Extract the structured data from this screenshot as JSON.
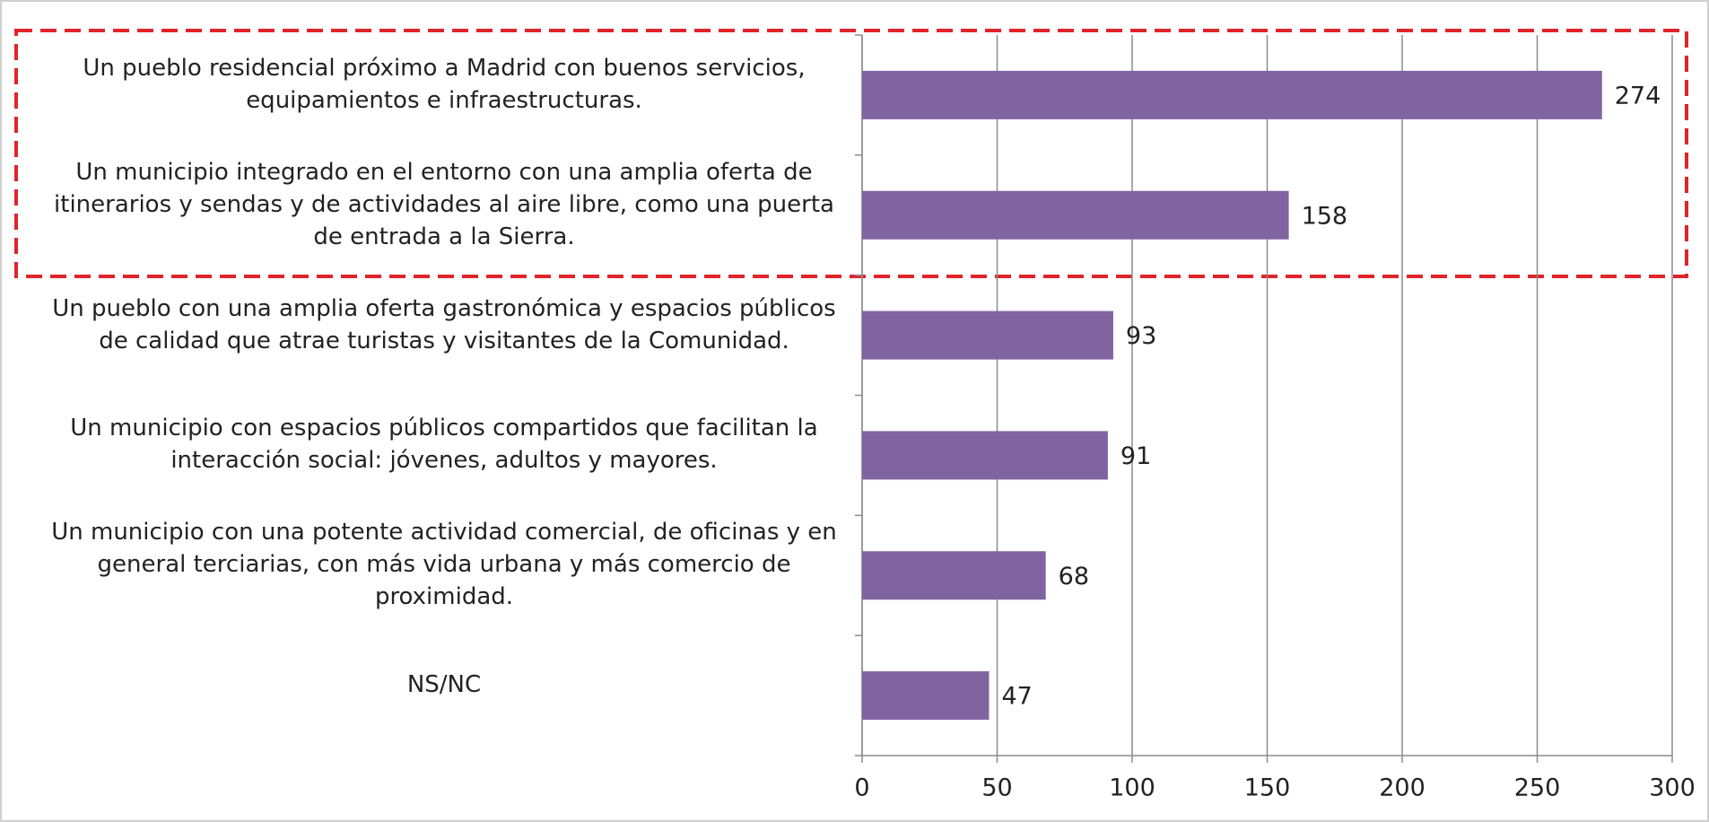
{
  "chart_data": {
    "type": "bar",
    "orientation": "horizontal",
    "categories": [
      "Un pueblo residencial próximo a Madrid con buenos servicios, equipamientos e infraestructuras.",
      "Un municipio integrado en el entorno con una amplia oferta de itinerarios y sendas y de actividades al aire libre, como una puerta de entrada a la Sierra.",
      "Un pueblo con una amplia oferta gastronómica y espacios públicos de calidad que atrae turistas y visitantes de la Comunidad.",
      "Un municipio con espacios públicos compartidos que facilitan la interacción social: jóvenes, adultos y mayores.",
      "Un municipio con una potente actividad comercial, de oficinas y en general terciarias, con más vida urbana y más comercio de proximidad.",
      "NS/NC"
    ],
    "values": [
      274,
      158,
      93,
      91,
      68,
      47
    ],
    "color": "#8064a2",
    "xlim": [
      0,
      300
    ],
    "xticks": [
      0,
      50,
      100,
      150,
      200,
      250,
      300
    ],
    "grid": true
  }
}
